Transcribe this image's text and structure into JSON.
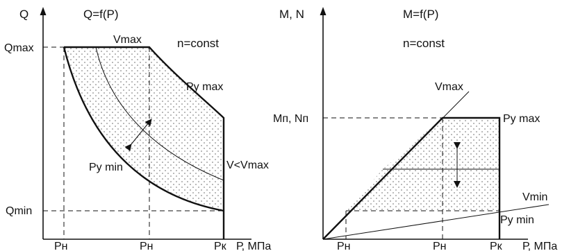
{
  "left_diagram": {
    "y_axis_label": "Q",
    "title": "Q=f(P)",
    "note": "n=const",
    "y_max_label": "Qmax",
    "y_min_label": "Qmin",
    "x_axis_label": "Р, МПа",
    "x_tick_1": "Рн",
    "x_tick_2": "Рн",
    "x_tick_3": "Рк",
    "v_max_label": "Vmax",
    "p_y_max_label": "Ру max",
    "p_y_min_label": "Ру min",
    "v_less_label": "V<Vmax"
  },
  "right_diagram": {
    "y_axis_label": "M, N",
    "title": "M=f(P)",
    "note": "n=const",
    "y_level_label": "Mп, Nп",
    "x_axis_label": "Р, МПа",
    "x_tick_1": "Рн",
    "x_tick_2": "Рн",
    "x_tick_3": "Рк",
    "v_max_label": "Vmax",
    "v_min_label": "Vmin",
    "p_y_max_label": "Ру max",
    "p_y_min_label": "Ру min"
  },
  "colors": {
    "line": "#111111",
    "dots": "#666666",
    "background": "#ffffff"
  }
}
